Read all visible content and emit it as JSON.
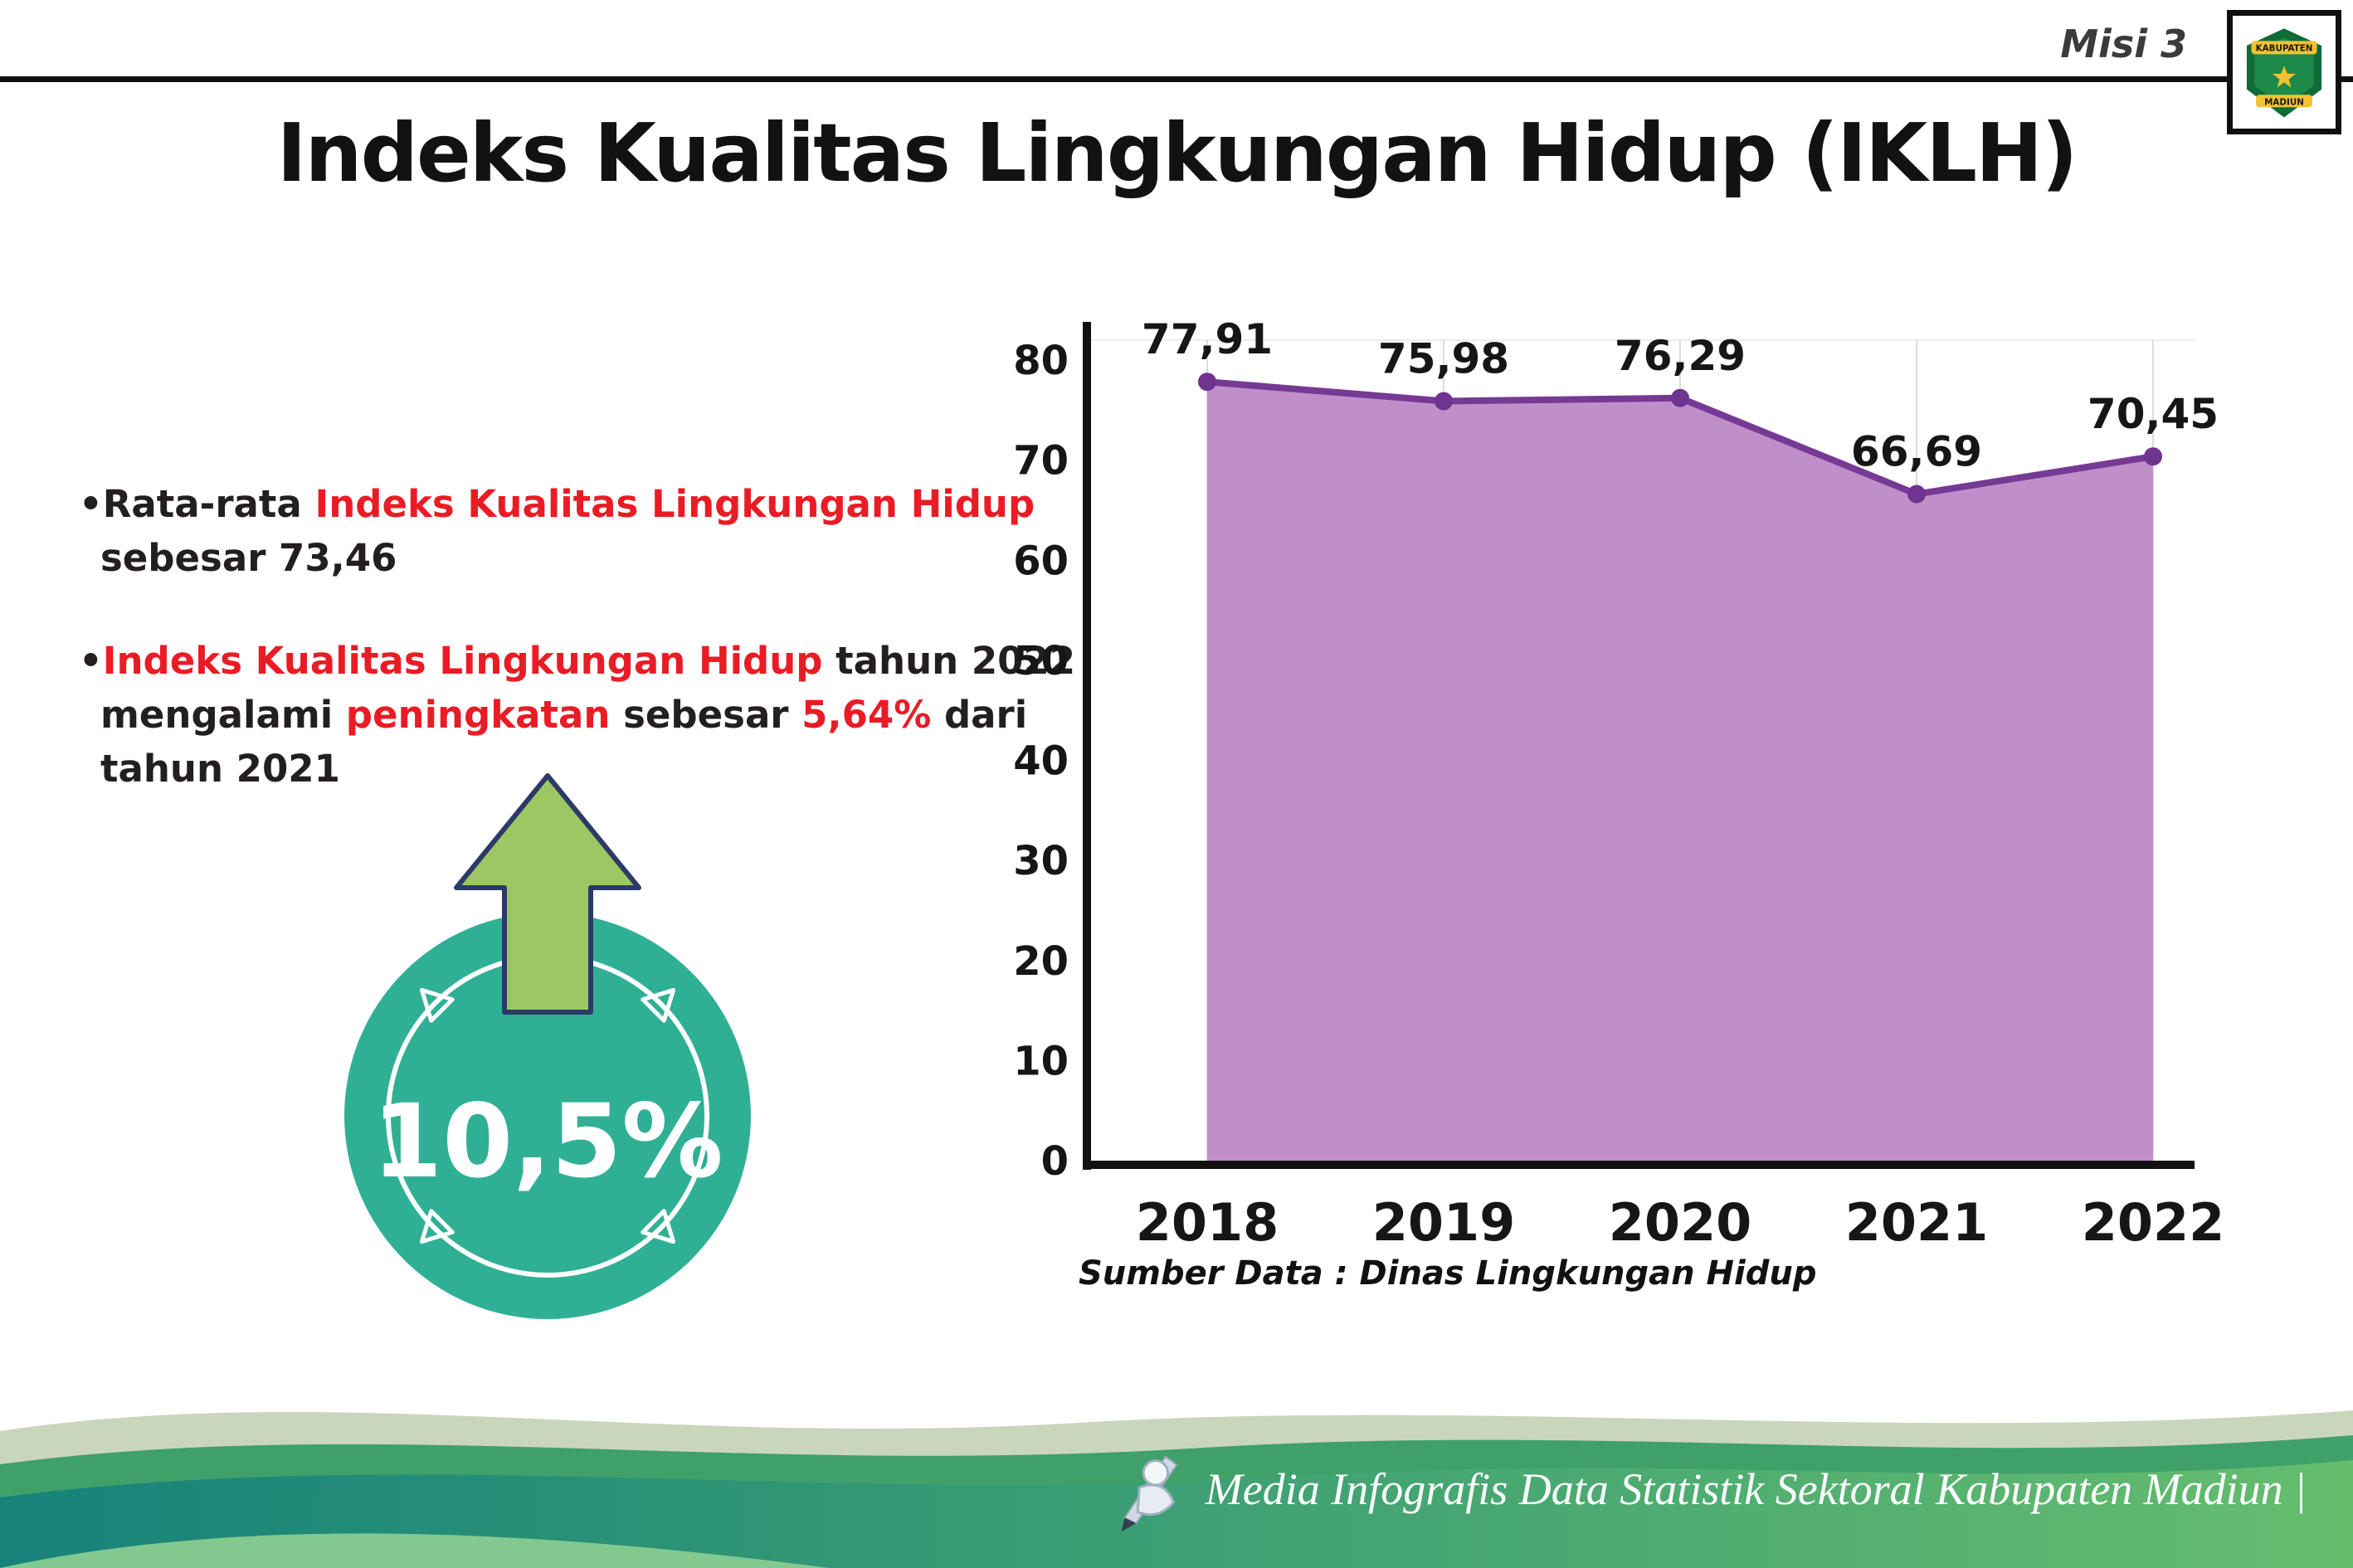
{
  "page": {
    "misi_label": "Misi 3",
    "title": "Indeks Kualitas Lingkungan Hidup (IKLH)"
  },
  "logo": {
    "name": "Kabupaten Madiun",
    "line1": "KABUPATEN",
    "line2": "MADIUN"
  },
  "ui": {
    "bullet_char": "•"
  },
  "bullets": [
    {
      "segments": [
        {
          "t": "Rata-rata ",
          "c": "dark"
        },
        {
          "t": "Indeks Kualitas Lingkungan Hidup",
          "c": "red"
        },
        {
          "t": " sebesar 73,46",
          "c": "dark"
        }
      ]
    },
    {
      "segments": [
        {
          "t": "Indeks Kualitas Lingkungan Hidup",
          "c": "red"
        },
        {
          "t": " tahun 2022 mengalami ",
          "c": "dark"
        },
        {
          "t": "peningkatan",
          "c": "red"
        },
        {
          "t": " sebesar ",
          "c": "dark"
        },
        {
          "t": "5,64%",
          "c": "red"
        },
        {
          "t": " dari tahun 2021",
          "c": "dark"
        }
      ]
    }
  ],
  "badge": {
    "value": "10,5%",
    "circle_color": "#2fb095",
    "arrow_color": "#9cc863",
    "arrow_outline": "#2b3a67"
  },
  "chart_data": {
    "type": "area",
    "title": "Indeks Kualitas Lingkungan Hidup (IKLH)",
    "categories": [
      "2018",
      "2019",
      "2020",
      "2021",
      "2022"
    ],
    "values": [
      77.91,
      75.98,
      76.29,
      66.69,
      70.45
    ],
    "value_labels": [
      "77,91",
      "75,98",
      "76,29",
      "66,69",
      "70,45"
    ],
    "xlabel": "",
    "ylabel": "",
    "ylim": [
      0,
      80
    ],
    "ytick_step": 10,
    "grid": "vertical-light",
    "legend": "none",
    "line_color": "#763a94",
    "marker_color": "#6f3390",
    "fill_color": "#c08fca",
    "source_note": "Sumber Data : Dinas Lingkungan Hidup"
  },
  "footer": {
    "credit": "Media Infografis Data Statistik Sektoral Kabupaten Madiun |"
  }
}
